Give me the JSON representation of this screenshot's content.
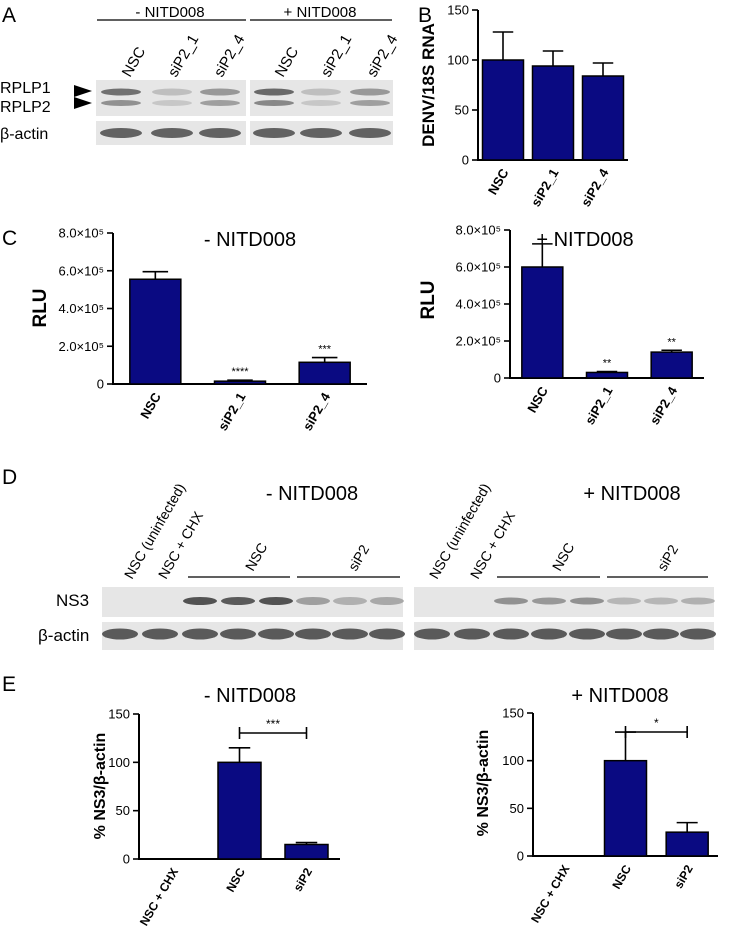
{
  "colors": {
    "bar": "#0a0a82",
    "axis": "#000000",
    "blot_bg": "#e6e6e6",
    "band_dark": "#4a4a4a",
    "band_light": "#bdbdbd"
  },
  "panels": {
    "A": {
      "letter": "A",
      "group_minus": "- NITD008",
      "group_plus": "+ NITD008",
      "lanes": [
        "NSC",
        "siP2_1",
        "siP2_4",
        "NSC",
        "siP2_1",
        "siP2_4"
      ],
      "rows": [
        "RPLP1",
        "RPLP2",
        "β-actin"
      ]
    },
    "B": {
      "letter": "B"
    },
    "C": {
      "letter": "C",
      "title_left": "- NITD008",
      "title_right": "+ NITD008"
    },
    "D": {
      "letter": "D",
      "title_left": "- NITD008",
      "title_right": "+ NITD008",
      "lane_left": [
        "NSC  (uninfected)",
        "NSC + CHX"
      ],
      "lane_right": [
        "NSC  (uninfected)",
        "NSC + CHX"
      ],
      "group_nsc": "NSC",
      "group_sip2": "siP2",
      "rows": [
        "NS3",
        "β-actin"
      ]
    },
    "E": {
      "letter": "E",
      "title_left": "- NITD008",
      "title_right": "+ NITD008"
    }
  },
  "chart_data": [
    {
      "id": "B",
      "type": "bar",
      "ylabel": "DENV/18S RNA",
      "categories": [
        "NSC",
        "siP2_1",
        "siP2_4"
      ],
      "values": [
        100,
        94,
        84
      ],
      "errors": [
        28,
        15,
        13
      ],
      "ylim": [
        0,
        150
      ],
      "yticks": [
        0,
        50,
        100,
        150
      ],
      "ytick_labels": [
        "0",
        "50",
        "100",
        "150"
      ],
      "annotations": [
        "",
        "",
        ""
      ]
    },
    {
      "id": "C-left",
      "type": "bar",
      "ylabel": "RLU",
      "title": "- NITD008",
      "categories": [
        "NSC",
        "siP2_1",
        "siP2_4"
      ],
      "values": [
        555000,
        15000,
        115000
      ],
      "errors": [
        40000,
        5000,
        25000
      ],
      "ylim": [
        0,
        800000
      ],
      "yticks": [
        0,
        200000,
        400000,
        600000,
        800000
      ],
      "ytick_labels": [
        "0",
        "2.0×10⁵",
        "4.0×10⁵",
        "6.0×10⁵",
        "8.0×10⁵"
      ],
      "annotations": [
        "",
        "****",
        "***"
      ]
    },
    {
      "id": "C-right",
      "type": "bar",
      "ylabel": "RLU",
      "title": "+ NITD008",
      "categories": [
        "NSC",
        "siP2_1",
        "siP2_4"
      ],
      "values": [
        600000,
        30000,
        140000
      ],
      "errors": [
        125000,
        5000,
        10000
      ],
      "ylim": [
        0,
        800000
      ],
      "yticks": [
        0,
        200000,
        400000,
        600000,
        800000
      ],
      "ytick_labels": [
        "0",
        "2.0×10⁵",
        "4.0×10⁵",
        "6.0×10⁵",
        "8.0×10⁵"
      ],
      "annotations": [
        "",
        "**",
        "**"
      ]
    },
    {
      "id": "E-left",
      "type": "bar",
      "ylabel": "% NS3/β-actin",
      "title": "- NITD008",
      "categories": [
        "NSC + CHX",
        "NSC",
        "siP2"
      ],
      "values": [
        0,
        100,
        15
      ],
      "errors": [
        0,
        15,
        2
      ],
      "ylim": [
        0,
        150
      ],
      "yticks": [
        0,
        50,
        100,
        150
      ],
      "ytick_labels": [
        "0",
        "50",
        "100",
        "150"
      ],
      "significance": {
        "from": 1,
        "to": 2,
        "label": "***"
      }
    },
    {
      "id": "E-right",
      "type": "bar",
      "ylabel": "% NS3/β-actin",
      "title": "+ NITD008",
      "categories": [
        "NSC + CHX",
        "NSC",
        "siP2"
      ],
      "values": [
        0,
        100,
        25
      ],
      "errors": [
        0,
        30,
        10
      ],
      "ylim": [
        0,
        150
      ],
      "yticks": [
        0,
        50,
        100,
        150
      ],
      "ytick_labels": [
        "0",
        "50",
        "100",
        "150"
      ],
      "significance": {
        "from": 1,
        "to": 2,
        "label": "*"
      }
    }
  ]
}
